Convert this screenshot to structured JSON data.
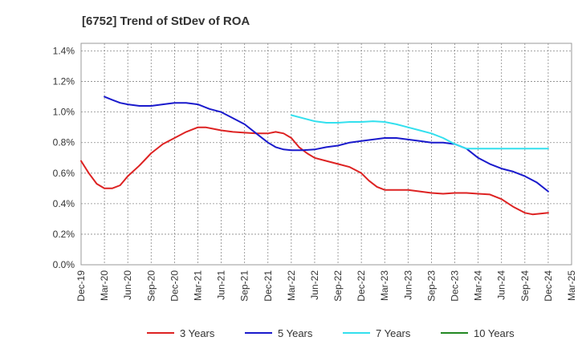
{
  "chart_data": {
    "type": "line",
    "title": "[6752]  Trend of StDev of ROA",
    "xlabel": "",
    "ylabel": "",
    "x_ticks": [
      "Dec-19",
      "Mar-20",
      "Jun-20",
      "Sep-20",
      "Dec-20",
      "Mar-21",
      "Jun-21",
      "Sep-21",
      "Dec-21",
      "Mar-22",
      "Jun-22",
      "Sep-22",
      "Dec-22",
      "Mar-23",
      "Jun-23",
      "Sep-23",
      "Dec-23",
      "Mar-24",
      "Jun-24",
      "Sep-24",
      "Dec-24",
      "Mar-25"
    ],
    "y_ticks": [
      "0.0%",
      "0.2%",
      "0.4%",
      "0.6%",
      "0.8%",
      "1.0%",
      "1.2%",
      "1.4%"
    ],
    "ylim": [
      0,
      1.45
    ],
    "grid": true,
    "legend_position": "bottom",
    "series": [
      {
        "name": "3 Years",
        "color": "#dd2222",
        "points": [
          [
            0,
            0.68
          ],
          [
            0.33,
            0.6
          ],
          [
            0.67,
            0.53
          ],
          [
            1,
            0.5
          ],
          [
            1.33,
            0.5
          ],
          [
            1.67,
            0.52
          ],
          [
            2,
            0.58
          ],
          [
            2.5,
            0.65
          ],
          [
            3,
            0.73
          ],
          [
            3.5,
            0.79
          ],
          [
            4,
            0.83
          ],
          [
            4.5,
            0.87
          ],
          [
            5,
            0.9
          ],
          [
            5.33,
            0.9
          ],
          [
            5.67,
            0.89
          ],
          [
            6,
            0.88
          ],
          [
            6.5,
            0.87
          ],
          [
            7,
            0.865
          ],
          [
            7.5,
            0.86
          ],
          [
            8,
            0.86
          ],
          [
            8.33,
            0.87
          ],
          [
            8.67,
            0.86
          ],
          [
            9,
            0.83
          ],
          [
            9.33,
            0.77
          ],
          [
            9.67,
            0.73
          ],
          [
            10,
            0.7
          ],
          [
            10.5,
            0.68
          ],
          [
            11,
            0.66
          ],
          [
            11.5,
            0.64
          ],
          [
            12,
            0.6
          ],
          [
            12.33,
            0.55
          ],
          [
            12.67,
            0.51
          ],
          [
            13,
            0.49
          ],
          [
            13.5,
            0.49
          ],
          [
            14,
            0.49
          ],
          [
            14.5,
            0.48
          ],
          [
            15,
            0.47
          ],
          [
            15.5,
            0.465
          ],
          [
            16,
            0.47
          ],
          [
            16.5,
            0.47
          ],
          [
            17,
            0.465
          ],
          [
            17.5,
            0.46
          ],
          [
            18,
            0.43
          ],
          [
            18.5,
            0.38
          ],
          [
            19,
            0.34
          ],
          [
            19.33,
            0.33
          ],
          [
            19.67,
            0.335
          ],
          [
            20,
            0.34
          ]
        ]
      },
      {
        "name": "5 Years",
        "color": "#1a1acc",
        "points": [
          [
            1,
            1.1
          ],
          [
            1.33,
            1.08
          ],
          [
            1.67,
            1.06
          ],
          [
            2,
            1.05
          ],
          [
            2.5,
            1.04
          ],
          [
            3,
            1.04
          ],
          [
            3.5,
            1.05
          ],
          [
            4,
            1.06
          ],
          [
            4.5,
            1.06
          ],
          [
            5,
            1.05
          ],
          [
            5.5,
            1.02
          ],
          [
            6,
            1.0
          ],
          [
            6.5,
            0.96
          ],
          [
            7,
            0.92
          ],
          [
            7.5,
            0.86
          ],
          [
            8,
            0.8
          ],
          [
            8.33,
            0.77
          ],
          [
            8.67,
            0.755
          ],
          [
            9,
            0.75
          ],
          [
            9.5,
            0.75
          ],
          [
            10,
            0.755
          ],
          [
            10.5,
            0.77
          ],
          [
            11,
            0.78
          ],
          [
            11.5,
            0.8
          ],
          [
            12,
            0.81
          ],
          [
            12.5,
            0.82
          ],
          [
            13,
            0.83
          ],
          [
            13.5,
            0.83
          ],
          [
            14,
            0.82
          ],
          [
            14.5,
            0.81
          ],
          [
            15,
            0.8
          ],
          [
            15.5,
            0.8
          ],
          [
            16,
            0.79
          ],
          [
            16.5,
            0.76
          ],
          [
            17,
            0.7
          ],
          [
            17.5,
            0.66
          ],
          [
            18,
            0.63
          ],
          [
            18.5,
            0.61
          ],
          [
            19,
            0.58
          ],
          [
            19.5,
            0.54
          ],
          [
            20,
            0.48
          ]
        ]
      },
      {
        "name": "7 Years",
        "color": "#33e0ee",
        "points": [
          [
            9,
            0.98
          ],
          [
            9.5,
            0.96
          ],
          [
            10,
            0.94
          ],
          [
            10.5,
            0.93
          ],
          [
            11,
            0.93
          ],
          [
            11.5,
            0.935
          ],
          [
            12,
            0.935
          ],
          [
            12.5,
            0.94
          ],
          [
            13,
            0.935
          ],
          [
            13.5,
            0.92
          ],
          [
            14,
            0.9
          ],
          [
            14.5,
            0.88
          ],
          [
            15,
            0.86
          ],
          [
            15.5,
            0.83
          ],
          [
            16,
            0.79
          ],
          [
            16.5,
            0.76
          ],
          [
            17,
            0.76
          ],
          [
            17.5,
            0.76
          ],
          [
            18,
            0.76
          ],
          [
            18.5,
            0.76
          ],
          [
            19,
            0.76
          ],
          [
            19.5,
            0.76
          ],
          [
            20,
            0.76
          ]
        ]
      },
      {
        "name": "10 Years",
        "color": "#228822",
        "points": []
      }
    ]
  }
}
